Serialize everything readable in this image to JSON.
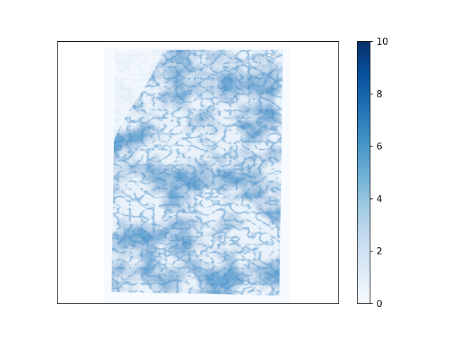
{
  "chart_data": {
    "type": "heatmap",
    "title": "",
    "xlabel": "",
    "ylabel": "",
    "x_ticks_visible": false,
    "y_ticks_visible": false,
    "description_value_range": [
      0,
      10
    ],
    "colormap": "Blues",
    "colorbar": {
      "min": 0,
      "max": 10,
      "ticks": [
        0,
        2,
        4,
        6,
        8,
        10
      ],
      "tick_labels": [
        "0",
        "2",
        "4",
        "6",
        "8",
        "10"
      ],
      "position": "right"
    },
    "colors": {
      "low": "#f7fbff",
      "mid": "#6baed6",
      "high": "#08306b"
    }
  }
}
